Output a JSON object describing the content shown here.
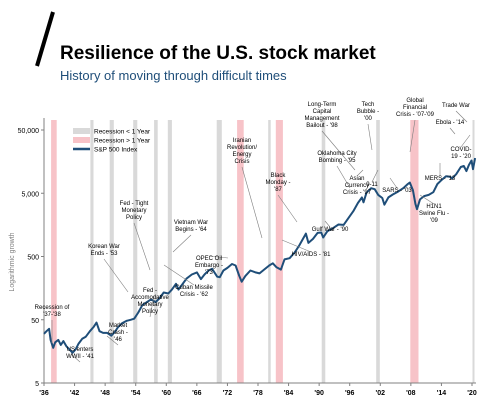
{
  "chart_data": {
    "type": "line",
    "title": "Resilience of the U.S. stock market",
    "subtitle": "History of moving through difficult times",
    "ylabel": "Logarithmic growth",
    "y_scale": "log",
    "ylim": [
      5,
      80000
    ],
    "xlim": [
      1936,
      2020
    ],
    "y_ticks": [
      {
        "value": 5,
        "label": "5"
      },
      {
        "value": 50,
        "label": "50"
      },
      {
        "value": 500,
        "label": "500"
      },
      {
        "value": 5000,
        "label": "5,000"
      },
      {
        "value": 50000,
        "label": "50,000"
      }
    ],
    "x_ticks": [
      {
        "value": 1936,
        "label": "'36"
      },
      {
        "value": 1942,
        "label": "'42"
      },
      {
        "value": 1948,
        "label": "'48"
      },
      {
        "value": 1954,
        "label": "'54"
      },
      {
        "value": 1960,
        "label": "'60"
      },
      {
        "value": 1966,
        "label": "'66"
      },
      {
        "value": 1972,
        "label": "'72"
      },
      {
        "value": 1978,
        "label": "'78"
      },
      {
        "value": 1984,
        "label": "'84"
      },
      {
        "value": 1990,
        "label": "'90"
      },
      {
        "value": 1996,
        "label": "'96"
      },
      {
        "value": 2002,
        "label": "'02"
      },
      {
        "value": 2008,
        "label": "'08"
      },
      {
        "value": 2014,
        "label": "'14"
      },
      {
        "value": 2020,
        "label": "'20"
      }
    ],
    "legend": {
      "placement": "top-left",
      "items": [
        {
          "label": "Recession < 1 Year",
          "kind": "short",
          "color": "#d9d9d9"
        },
        {
          "label": "Recession > 1 Year",
          "kind": "long",
          "color": "#f7c3c8"
        },
        {
          "label": "S&P 500 Index",
          "kind": "line",
          "color": "#1f4e79"
        }
      ]
    },
    "recessions": [
      {
        "start": 1937.4,
        "end": 1938.5,
        "kind": "long"
      },
      {
        "start": 1945.1,
        "end": 1945.7,
        "kind": "short"
      },
      {
        "start": 1948.9,
        "end": 1949.7,
        "kind": "short"
      },
      {
        "start": 1953.5,
        "end": 1954.3,
        "kind": "short"
      },
      {
        "start": 1957.6,
        "end": 1958.3,
        "kind": "short"
      },
      {
        "start": 1960.3,
        "end": 1961.1,
        "kind": "short"
      },
      {
        "start": 1969.9,
        "end": 1970.9,
        "kind": "short"
      },
      {
        "start": 1973.9,
        "end": 1975.2,
        "kind": "long"
      },
      {
        "start": 1980.0,
        "end": 1980.5,
        "kind": "short"
      },
      {
        "start": 1981.5,
        "end": 1982.9,
        "kind": "long"
      },
      {
        "start": 1990.5,
        "end": 1991.2,
        "kind": "short"
      },
      {
        "start": 2001.2,
        "end": 2001.9,
        "kind": "short"
      },
      {
        "start": 2007.9,
        "end": 2009.5,
        "kind": "long"
      },
      {
        "start": 2020.1,
        "end": 2020.3,
        "kind": "short"
      }
    ],
    "series": [
      {
        "name": "S&P 500 Index",
        "color": "#1f4e79",
        "x": [
          1936.0,
          1936.5,
          1937.0,
          1937.3,
          1937.8,
          1938.2,
          1938.8,
          1939.3,
          1939.8,
          1940.4,
          1941.0,
          1941.6,
          1942.2,
          1942.8,
          1943.5,
          1944.2,
          1945.0,
          1945.8,
          1946.3,
          1946.9,
          1947.6,
          1948.4,
          1949.2,
          1949.9,
          1950.5,
          1951.3,
          1952.2,
          1953.0,
          1953.7,
          1954.5,
          1955.3,
          1956.2,
          1957.0,
          1957.9,
          1958.7,
          1959.5,
          1960.4,
          1961.1,
          1961.9,
          1962.4,
          1963.0,
          1964.0,
          1965.0,
          1966.0,
          1966.8,
          1967.5,
          1968.3,
          1969.0,
          1970.0,
          1970.5,
          1971.2,
          1972.0,
          1972.9,
          1973.6,
          1974.3,
          1974.8,
          1975.5,
          1976.5,
          1977.5,
          1978.3,
          1979.2,
          1980.2,
          1980.9,
          1981.6,
          1982.5,
          1983.2,
          1984.2,
          1985.2,
          1986.1,
          1987.4,
          1987.9,
          1988.8,
          1989.7,
          1990.4,
          1990.8,
          1991.6,
          1992.7,
          1993.8,
          1994.8,
          1995.8,
          1996.7,
          1997.6,
          1998.4,
          1998.7,
          1999.3,
          2000.2,
          2000.9,
          2001.6,
          2002.4,
          2002.8,
          2003.6,
          2004.5,
          2005.5,
          2006.5,
          2007.4,
          2007.8,
          2008.4,
          2008.9,
          2009.2,
          2009.8,
          2010.6,
          2011.5,
          2012.4,
          2013.2,
          2014.1,
          2014.9,
          2015.7,
          2016.1,
          2016.9,
          2017.8,
          2018.4,
          2018.9,
          2019.4,
          2019.9,
          2020.2,
          2020.6
        ],
        "y": [
          30,
          33,
          36,
          24,
          18,
          22,
          24,
          20,
          23,
          19,
          17,
          15,
          17,
          21,
          25,
          27,
          33,
          39,
          45,
          33,
          31,
          31,
          28,
          32,
          38,
          44,
          48,
          50,
          52,
          65,
          85,
          95,
          105,
          95,
          110,
          135,
          130,
          150,
          185,
          150,
          175,
          225,
          260,
          280,
          220,
          260,
          300,
          320,
          240,
          235,
          300,
          330,
          380,
          360,
          250,
          200,
          245,
          300,
          280,
          270,
          310,
          360,
          390,
          340,
          310,
          450,
          470,
          580,
          750,
          1150,
          820,
          950,
          1180,
          1200,
          1000,
          1250,
          1400,
          1600,
          1580,
          2050,
          2600,
          3500,
          4300,
          3600,
          5100,
          6000,
          5800,
          4700,
          4200,
          3300,
          4300,
          4800,
          5300,
          6000,
          7000,
          7400,
          5600,
          3400,
          2800,
          4000,
          4500,
          4700,
          5200,
          7000,
          8200,
          9300,
          9100,
          8600,
          10000,
          13000,
          13500,
          11200,
          14000,
          16500,
          12000,
          18000
        ]
      }
    ],
    "annotations": [
      {
        "lines": [
          "Recession of",
          "'37-'38"
        ],
        "x": 1937.8
      },
      {
        "lines": [
          "US enters",
          "WWII - '41"
        ],
        "x": 1941.9
      },
      {
        "lines": [
          "Market",
          "Crash -",
          "'46"
        ],
        "x": 1946.9
      },
      {
        "lines": [
          "Korean War",
          "Ends - '53"
        ],
        "x": 1953.5
      },
      {
        "lines": [
          "Fed - Tight",
          "Monetary",
          "Policy"
        ],
        "x": 1958.0
      },
      {
        "lines": [
          "Fed -",
          "Accomodative",
          "Monetary",
          "Policy"
        ],
        "x": 1959.2
      },
      {
        "lines": [
          "Cuban Missile",
          "Crisis - '62"
        ],
        "x": 1962.4
      },
      {
        "lines": [
          "Vietnam War",
          "Begins - '64"
        ],
        "x": 1964.0
      },
      {
        "lines": [
          "OPEC Oil",
          "Embargo -",
          "'73"
        ],
        "x": 1973.6
      },
      {
        "lines": [
          "Iranian",
          "Revolution/",
          "Energy",
          "Crisis"
        ],
        "x": 1979.2
      },
      {
        "lines": [
          "Black",
          "Monday -",
          "'87"
        ],
        "x": 1987.8
      },
      {
        "lines": [
          "HIV/AIDS - '81"
        ],
        "x": 1981.6
      },
      {
        "lines": [
          "Gulf War - '90"
        ],
        "x": 1990.8
      },
      {
        "lines": [
          "Long-Term",
          "Capital",
          "Management",
          "Bailout - '98"
        ],
        "x": 1998.7
      },
      {
        "lines": [
          "Oklahoma City",
          "Bombing - '95"
        ],
        "x": 1995.3
      },
      {
        "lines": [
          "Asian",
          "Currency",
          "Crisis - '97"
        ],
        "x": 1997.6
      },
      {
        "lines": [
          "Tech",
          "Bubble -",
          "'00"
        ],
        "x": 2000.2
      },
      {
        "lines": [
          "9-11"
        ],
        "x": 2001.7
      },
      {
        "lines": [
          "SARS - '03"
        ],
        "x": 2003.2
      },
      {
        "lines": [
          "Global",
          "Financial",
          "Crisis - '07-'09"
        ],
        "x": 2007.8
      },
      {
        "lines": [
          "H1N1",
          "Swine Flu -",
          "'09"
        ],
        "x": 2009.2
      },
      {
        "lines": [
          "MERS - '13"
        ],
        "x": 2013.2
      },
      {
        "lines": [
          "Ebola - '14"
        ],
        "x": 2014.5
      },
      {
        "lines": [
          "Trade War"
        ],
        "x": 2018.3
      },
      {
        "lines": [
          "COVID-",
          "19 - '20"
        ],
        "x": 2020.1
      }
    ]
  }
}
